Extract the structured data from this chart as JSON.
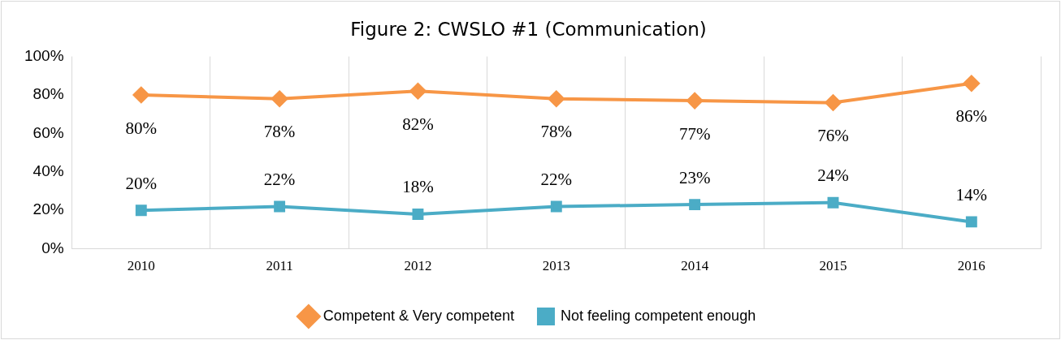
{
  "chart_data": {
    "type": "line",
    "title": "Figure 2: CWSLO #1 (Communication)",
    "categories": [
      "2010",
      "2011",
      "2012",
      "2013",
      "2014",
      "2015",
      "2016"
    ],
    "series": [
      {
        "name": "Competent & Very competent",
        "color": "#f79646",
        "marker": "diamond",
        "values": [
          80,
          78,
          82,
          78,
          77,
          76,
          86
        ],
        "value_labels": [
          "80%",
          "78%",
          "82%",
          "78%",
          "77%",
          "76%",
          "86%"
        ]
      },
      {
        "name": "Not feeling competent enough",
        "color": "#4bacc6",
        "marker": "square",
        "values": [
          20,
          22,
          18,
          22,
          23,
          24,
          14
        ],
        "value_labels": [
          "20%",
          "22%",
          "18%",
          "22%",
          "23%",
          "24%",
          "14%"
        ]
      }
    ],
    "ylim": [
      0,
      100
    ],
    "yticks": [
      {
        "value": 0,
        "label": "0%"
      },
      {
        "value": 20,
        "label": "20%"
      },
      {
        "value": 40,
        "label": "40%"
      },
      {
        "value": 60,
        "label": "60%"
      },
      {
        "value": 80,
        "label": "80%"
      },
      {
        "value": 100,
        "label": "100%"
      }
    ],
    "grid": "x",
    "legend": "bottom"
  }
}
